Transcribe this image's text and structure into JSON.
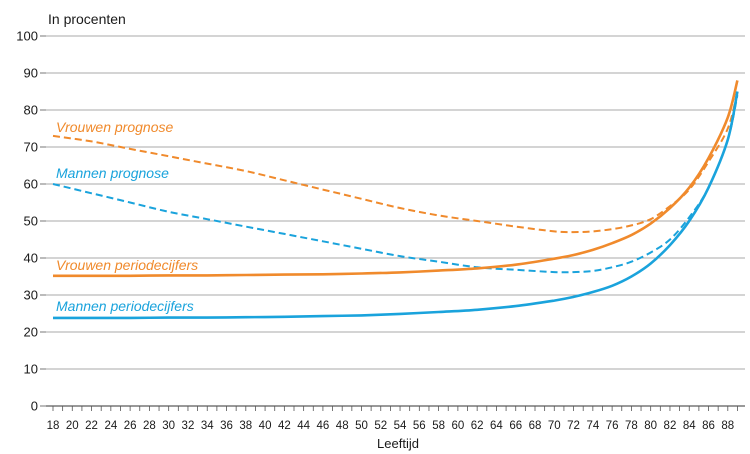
{
  "chart_data": {
    "type": "line",
    "title": "In procenten",
    "xlabel": "Leeftijd",
    "ylabel": "",
    "ylim": [
      0,
      100
    ],
    "yticks": [
      0,
      10,
      20,
      30,
      40,
      50,
      60,
      70,
      80,
      90,
      100
    ],
    "xlim": [
      18,
      89
    ],
    "xticks": [
      18,
      20,
      22,
      24,
      26,
      28,
      30,
      32,
      34,
      36,
      38,
      40,
      42,
      44,
      46,
      48,
      50,
      52,
      54,
      56,
      58,
      60,
      62,
      64,
      66,
      68,
      70,
      72,
      74,
      76,
      78,
      80,
      82,
      84,
      86,
      88
    ],
    "grid": "horizontal",
    "series": [
      {
        "name": "Vrouwen prognose",
        "color": "#f08a2c",
        "dash": true,
        "x": [
          18,
          22,
          26,
          30,
          34,
          38,
          42,
          46,
          50,
          54,
          58,
          62,
          66,
          70,
          72,
          74,
          76,
          78,
          80,
          82,
          84,
          86,
          88,
          89
        ],
        "y": [
          73,
          71.5,
          69.5,
          67.5,
          65.5,
          63.5,
          61,
          58.5,
          56,
          53.5,
          51.5,
          50,
          48.5,
          47.2,
          47,
          47.2,
          47.8,
          48.8,
          50.5,
          54,
          58.5,
          66,
          75,
          85
        ]
      },
      {
        "name": "Mannen prognose",
        "color": "#1aa3dc",
        "dash": true,
        "x": [
          18,
          22,
          26,
          30,
          34,
          38,
          42,
          46,
          50,
          54,
          58,
          62,
          66,
          70,
          72,
          74,
          76,
          78,
          80,
          82,
          84,
          86,
          88,
          89
        ],
        "y": [
          60,
          57.5,
          55,
          52.5,
          50.5,
          48.5,
          46.5,
          44.5,
          42.5,
          40.5,
          39,
          37.5,
          36.8,
          36.2,
          36.2,
          36.5,
          37.5,
          39,
          41.5,
          45,
          51,
          59,
          72,
          84
        ]
      },
      {
        "name": "Vrouwen periodecijfers",
        "color": "#f08a2c",
        "dash": false,
        "x": [
          18,
          22,
          26,
          30,
          34,
          38,
          42,
          46,
          50,
          54,
          58,
          62,
          66,
          70,
          72,
          74,
          76,
          78,
          80,
          82,
          84,
          86,
          88,
          89
        ],
        "y": [
          35.2,
          35.2,
          35.2,
          35.3,
          35.3,
          35.4,
          35.5,
          35.6,
          35.8,
          36.1,
          36.6,
          37.2,
          38.2,
          39.8,
          40.8,
          42.2,
          44,
          46.2,
          49.3,
          53.5,
          59,
          67,
          78,
          88
        ]
      },
      {
        "name": "Mannen periodecijfers",
        "color": "#1aa3dc",
        "dash": false,
        "x": [
          18,
          22,
          26,
          30,
          34,
          38,
          42,
          46,
          50,
          54,
          58,
          62,
          66,
          70,
          72,
          74,
          76,
          78,
          80,
          82,
          84,
          86,
          88,
          89
        ],
        "y": [
          23.8,
          23.8,
          23.8,
          23.9,
          23.9,
          24,
          24.1,
          24.3,
          24.5,
          24.9,
          25.4,
          26,
          27,
          28.5,
          29.5,
          30.8,
          32.5,
          35,
          38.5,
          43.5,
          50,
          59,
          72,
          85
        ]
      }
    ]
  }
}
